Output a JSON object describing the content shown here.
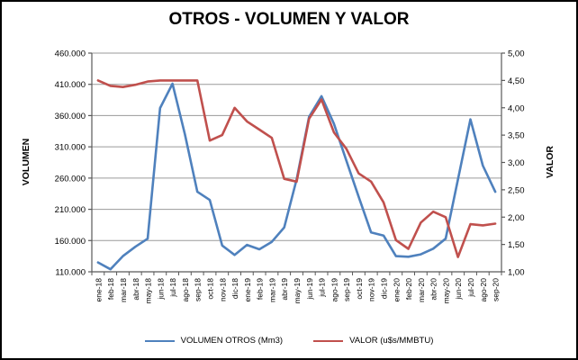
{
  "chart": {
    "title": "OTROS - VOLUMEN Y VALOR",
    "left_axis_title": "VOLUMEN",
    "right_axis_title": "VALOR",
    "colors": {
      "volumen_line": "#4F81BD",
      "valor_line": "#C0504D",
      "gridline": "#9a9a9a",
      "axis_line": "#595959",
      "text": "#000000",
      "background": "#ffffff",
      "border": "#000000"
    }
  },
  "chart_data": {
    "type": "line",
    "title": "OTROS - VOLUMEN Y VALOR",
    "categories": [
      "ene-18",
      "feb-18",
      "mar-18",
      "abr-18",
      "may-18",
      "jun-18",
      "jul-18",
      "ago-18",
      "sep-18",
      "oct-18",
      "nov-18",
      "dic-18",
      "ene-19",
      "feb-19",
      "mar-19",
      "abr-19",
      "may-19",
      "jun-19",
      "jul-19",
      "ago-19",
      "sep-19",
      "oct-19",
      "nov-19",
      "dic-19",
      "ene-20",
      "feb-20",
      "mar-20",
      "abr-20",
      "may-20",
      "jun-20",
      "jul-20",
      "ago-20",
      "sep-20"
    ],
    "series": [
      {
        "name": "VOLUMEN OTROS (Mm3)",
        "axis": "left",
        "color": "#4F81BD",
        "values": [
          125000,
          114000,
          135000,
          150000,
          163000,
          372000,
          411000,
          330000,
          238000,
          225000,
          152000,
          137000,
          153000,
          146000,
          158000,
          181000,
          258000,
          358000,
          391000,
          347000,
          288000,
          230000,
          173000,
          168000,
          135000,
          134000,
          138000,
          147000,
          163000,
          258000,
          354000,
          280000,
          238000
        ]
      },
      {
        "name": "VALOR (u$s/MMBTU)",
        "axis": "right",
        "color": "#C0504D",
        "values": [
          4.5,
          4.4,
          4.38,
          4.42,
          4.48,
          4.5,
          4.5,
          4.5,
          4.5,
          3.4,
          3.5,
          4.0,
          3.75,
          3.6,
          3.45,
          2.7,
          2.65,
          3.8,
          4.15,
          3.55,
          3.25,
          2.8,
          2.65,
          2.27,
          1.58,
          1.42,
          1.9,
          2.1,
          2.0,
          1.27,
          1.87,
          1.85,
          1.88
        ]
      }
    ],
    "left_axis": {
      "label": "VOLUMEN",
      "min": 110000,
      "max": 460000,
      "step": 50000,
      "tick_labels": [
        "460.000",
        "410.000",
        "360.000",
        "310.000",
        "260.000",
        "210.000",
        "160.000",
        "110.000"
      ]
    },
    "right_axis": {
      "label": "VALOR",
      "min": 1.0,
      "max": 5.0,
      "step": 0.5,
      "tick_labels": [
        "5,00",
        "4,50",
        "4,00",
        "3,50",
        "3,00",
        "2,50",
        "2,00",
        "1,50",
        "1,00"
      ]
    },
    "grid": "horizontal",
    "legend_position": "bottom"
  }
}
